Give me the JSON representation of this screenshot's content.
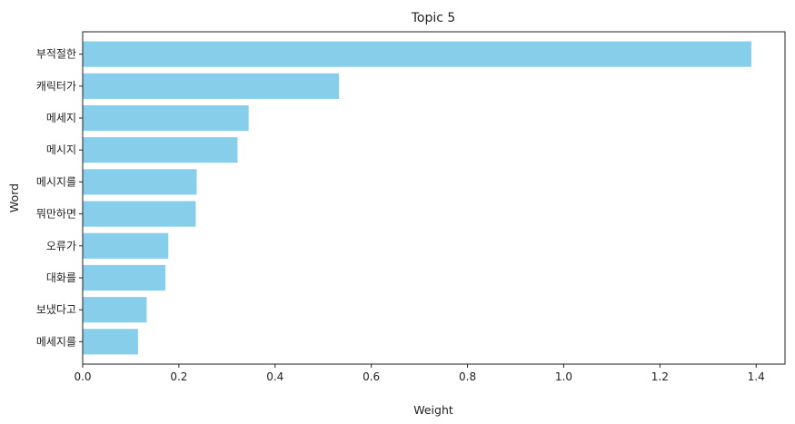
{
  "chart_data": {
    "type": "bar",
    "orientation": "horizontal",
    "title": "Topic 5",
    "xlabel": "Weight",
    "ylabel": "Word",
    "categories": [
      "부적절한",
      "캐릭터가",
      "메세지",
      "메시지",
      "메시지를",
      "뭐만하면",
      "오류가",
      "대화를",
      "보냈다고",
      "메세지를"
    ],
    "values": [
      1.39,
      0.533,
      0.345,
      0.322,
      0.237,
      0.235,
      0.178,
      0.172,
      0.133,
      0.115
    ],
    "xlim": [
      0,
      1.46
    ],
    "xticks": [
      "0.0",
      "0.2",
      "0.4",
      "0.6",
      "0.8",
      "1.0",
      "1.2",
      "1.4"
    ],
    "bar_color": "#87ceeb",
    "grid": false,
    "legend": "none"
  }
}
